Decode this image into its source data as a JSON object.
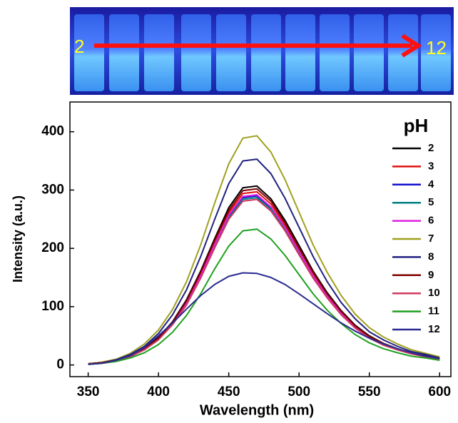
{
  "photo_labels": {
    "start": "2",
    "end": "12"
  },
  "chart_data": {
    "type": "line",
    "xlabel": "Wavelength (nm)",
    "ylabel": "Intensity (a.u.)",
    "legend_title": "pH",
    "x": [
      350,
      360,
      370,
      380,
      390,
      400,
      410,
      420,
      430,
      440,
      450,
      460,
      470,
      480,
      490,
      500,
      510,
      520,
      530,
      540,
      550,
      560,
      570,
      580,
      590,
      600
    ],
    "xlim": [
      337,
      608
    ],
    "xticks": [
      350,
      400,
      450,
      500,
      550,
      600
    ],
    "ylim": [
      -20,
      451
    ],
    "yticks": [
      0,
      100,
      200,
      300,
      400
    ],
    "series": [
      {
        "name": "2",
        "color": "#000000",
        "values": [
          2,
          4,
          8,
          16,
          28,
          47,
          74,
          112,
          161,
          217,
          270,
          304,
          307,
          285,
          248,
          205,
          161,
          124,
          93,
          68,
          50,
          37,
          28,
          20,
          16,
          11
        ]
      },
      {
        "name": "3",
        "color": "#e01010",
        "values": [
          2,
          4,
          8,
          15,
          27,
          45,
          72,
          108,
          156,
          210,
          261,
          294,
          297,
          276,
          240,
          198,
          156,
          120,
          90,
          66,
          48,
          36,
          27,
          20,
          15,
          11
        ]
      },
      {
        "name": "4",
        "color": "#1010d0",
        "values": [
          1,
          4,
          7,
          15,
          26,
          44,
          70,
          105,
          152,
          205,
          255,
          287,
          290,
          270,
          234,
          193,
          152,
          117,
          88,
          64,
          47,
          35,
          26,
          19,
          15,
          10
        ]
      },
      {
        "name": "5",
        "color": "#008080",
        "values": [
          1,
          3,
          7,
          15,
          26,
          44,
          70,
          104,
          151,
          203,
          252,
          284,
          287,
          267,
          232,
          191,
          151,
          116,
          87,
          64,
          46,
          35,
          26,
          19,
          15,
          10
        ]
      },
      {
        "name": "6",
        "color": "#e020e0",
        "values": [
          1,
          4,
          7,
          15,
          27,
          44,
          71,
          106,
          153,
          207,
          257,
          289,
          292,
          271,
          236,
          195,
          153,
          118,
          89,
          65,
          47,
          35,
          27,
          19,
          15,
          10
        ]
      },
      {
        "name": "7",
        "color": "#a0a020",
        "values": [
          2,
          5,
          10,
          20,
          36,
          60,
          95,
          143,
          206,
          278,
          345,
          389,
          393,
          365,
          318,
          262,
          206,
          159,
          119,
          87,
          64,
          48,
          36,
          26,
          20,
          14
        ]
      },
      {
        "name": "8",
        "color": "#202080",
        "values": [
          2,
          4,
          9,
          18,
          32,
          54,
          86,
          129,
          186,
          250,
          311,
          350,
          353,
          328,
          286,
          236,
          186,
          143,
          107,
          79,
          57,
          43,
          32,
          23,
          18,
          12
        ]
      },
      {
        "name": "9",
        "color": "#800000",
        "values": [
          2,
          4,
          8,
          15,
          27,
          46,
          73,
          110,
          159,
          214,
          265,
          299,
          302,
          281,
          244,
          201,
          159,
          122,
          92,
          67,
          49,
          37,
          27,
          20,
          15,
          11
        ]
      },
      {
        "name": "10",
        "color": "#d03860",
        "values": [
          1,
          3,
          7,
          14,
          26,
          43,
          69,
          103,
          149,
          201,
          250,
          281,
          284,
          264,
          230,
          189,
          149,
          115,
          86,
          63,
          46,
          34,
          26,
          19,
          14,
          10
        ]
      },
      {
        "name": "11",
        "color": "#20a020",
        "values": [
          1,
          3,
          6,
          12,
          21,
          35,
          56,
          85,
          122,
          165,
          204,
          230,
          233,
          216,
          188,
          155,
          122,
          94,
          71,
          52,
          38,
          28,
          21,
          15,
          12,
          8
        ]
      },
      {
        "name": "12",
        "color": "#2a2a90",
        "values": [
          1,
          3,
          8,
          16,
          30,
          50,
          72,
          96,
          119,
          138,
          152,
          158,
          157,
          150,
          138,
          122,
          105,
          88,
          72,
          58,
          46,
          36,
          28,
          21,
          15,
          11
        ]
      }
    ]
  }
}
